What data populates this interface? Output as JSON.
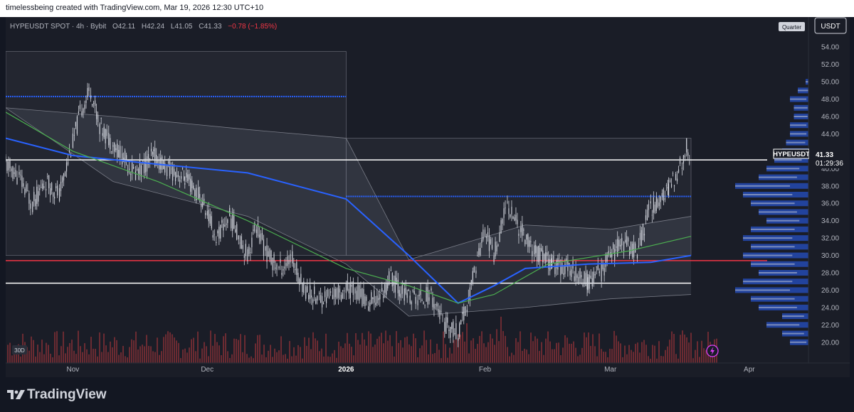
{
  "header": {
    "credit": "timelessbeing created with TradingView.com, Mar 19, 2026 12:30 UTC+10"
  },
  "symbol": {
    "title": "HYPEUSDT SPOT · 4h · Bybit",
    "open": "O42.11",
    "high": "H42.24",
    "low": "L41.05",
    "close": "C41.33",
    "change": "−0.78 (−1.85%)"
  },
  "toolbar": {
    "quarter_label": "Quarter",
    "currency_label": "USDT",
    "range_badge": "30D"
  },
  "price_label": {
    "symbol": "HYPEUSDT",
    "price": "41.33",
    "countdown": "01:29:36"
  },
  "footer": {
    "brand": "TradingView"
  },
  "colors": {
    "background": "#1a1d27",
    "candle": "#d1d4dc",
    "ma_blue": "#2962ff",
    "ma_green": "#4caf50",
    "support_red": "#f23645",
    "level_white": "#ffffff",
    "volume": "#7a2e35"
  },
  "chart_data": {
    "type": "candlestick",
    "x_labels": [
      "Nov",
      "Dec",
      "2026",
      "Feb",
      "Mar",
      "Apr"
    ],
    "y_ticks": [
      "20.00",
      "22.00",
      "24.00",
      "26.00",
      "28.00",
      "30.00",
      "32.00",
      "34.00",
      "36.00",
      "38.00",
      "40.00",
      "42.00",
      "44.00",
      "46.00",
      "48.00",
      "50.00",
      "52.00",
      "54.00"
    ],
    "ylim": [
      19,
      55
    ],
    "current_price": 41.33,
    "price_series": [
      [
        "2025-10-17",
        40.5
      ],
      [
        "2025-10-20",
        39
      ],
      [
        "2025-10-23",
        36
      ],
      [
        "2025-10-26",
        38.5
      ],
      [
        "2025-10-29",
        37
      ],
      [
        "2025-11-01",
        43
      ],
      [
        "2025-11-03",
        47
      ],
      [
        "2025-11-05",
        49
      ],
      [
        "2025-11-07",
        45
      ],
      [
        "2025-11-09",
        43.5
      ],
      [
        "2025-11-12",
        41.5
      ],
      [
        "2025-11-15",
        39.5
      ],
      [
        "2025-11-19",
        41.5
      ],
      [
        "2025-11-22",
        40
      ],
      [
        "2025-11-26",
        39
      ],
      [
        "2025-11-29",
        37
      ],
      [
        "2025-12-01",
        35
      ],
      [
        "2025-12-03",
        32
      ],
      [
        "2025-12-06",
        34.5
      ],
      [
        "2025-12-08",
        32.5
      ],
      [
        "2025-12-10",
        30
      ],
      [
        "2025-12-12",
        33.5
      ],
      [
        "2025-12-14",
        30.5
      ],
      [
        "2025-12-17",
        28.5
      ],
      [
        "2025-12-20",
        29.5
      ],
      [
        "2025-12-23",
        26
      ],
      [
        "2025-12-26",
        25
      ],
      [
        "2025-12-29",
        25.5
      ],
      [
        "2026-01-01",
        26
      ],
      [
        "2026-01-03",
        26.2
      ],
      [
        "2026-01-06",
        24.5
      ],
      [
        "2026-01-09",
        25.5
      ],
      [
        "2026-01-11",
        27.5
      ],
      [
        "2026-01-14",
        25.5
      ],
      [
        "2026-01-17",
        25
      ],
      [
        "2026-01-20",
        25.5
      ],
      [
        "2026-01-23",
        22
      ],
      [
        "2026-01-26",
        21
      ],
      [
        "2026-01-28",
        24
      ],
      [
        "2026-01-30",
        29
      ],
      [
        "2026-02-01",
        33
      ],
      [
        "2026-02-03",
        30
      ],
      [
        "2026-02-06",
        36
      ],
      [
        "2026-02-09",
        33
      ],
      [
        "2026-02-12",
        30.5
      ],
      [
        "2026-02-16",
        29
      ],
      [
        "2026-02-20",
        28.5
      ],
      [
        "2026-02-24",
        27
      ],
      [
        "2026-02-27",
        28
      ],
      [
        "2026-03-01",
        30
      ],
      [
        "2026-03-04",
        31.5
      ],
      [
        "2026-03-07",
        30.5
      ],
      [
        "2026-03-10",
        35.5
      ],
      [
        "2026-03-14",
        37.5
      ],
      [
        "2026-03-17",
        40.5
      ],
      [
        "2026-03-18",
        42.5
      ],
      [
        "2026-03-19",
        41.33
      ]
    ],
    "ma_blue": [
      [
        "2025-10-17",
        43.5
      ],
      [
        "2025-11-01",
        41.5
      ],
      [
        "2025-11-20",
        40.5
      ],
      [
        "2025-12-10",
        39.5
      ],
      [
        "2026-01-01",
        36.5
      ],
      [
        "2026-01-15",
        30
      ],
      [
        "2026-01-26",
        24.5
      ],
      [
        "2026-02-03",
        26.5
      ],
      [
        "2026-02-10",
        28.5
      ],
      [
        "2026-02-24",
        29
      ],
      [
        "2026-03-10",
        29.2
      ],
      [
        "2026-03-19",
        30
      ]
    ],
    "ma_green": [
      [
        "2025-10-17",
        46.5
      ],
      [
        "2025-11-01",
        42
      ],
      [
        "2025-11-20",
        38.5
      ],
      [
        "2025-12-10",
        34
      ],
      [
        "2026-01-01",
        28.5
      ],
      [
        "2026-01-15",
        26.5
      ],
      [
        "2026-01-26",
        24.5
      ],
      [
        "2026-02-03",
        25.5
      ],
      [
        "2026-02-15",
        29
      ],
      [
        "2026-03-05",
        30.5
      ],
      [
        "2026-03-19",
        32.2
      ]
    ],
    "band_upper": [
      [
        "2025-10-17",
        47
      ],
      [
        "2025-11-10",
        46
      ],
      [
        "2025-12-10",
        44.5
      ],
      [
        "2026-01-01",
        43.5
      ],
      [
        "2026-01-15",
        29.5
      ],
      [
        "2026-02-10",
        33.5
      ],
      [
        "2026-03-01",
        33
      ],
      [
        "2026-03-19",
        34.5
      ]
    ],
    "band_lower": [
      [
        "2025-10-17",
        47
      ],
      [
        "2025-11-10",
        38.5
      ],
      [
        "2025-12-10",
        34.5
      ],
      [
        "2026-01-01",
        29
      ],
      [
        "2026-01-15",
        23
      ],
      [
        "2026-02-10",
        24
      ],
      [
        "2026-03-01",
        25
      ],
      [
        "2026-03-19",
        25.5
      ]
    ],
    "horizontal_levels": [
      {
        "price": 48.3,
        "from": "2025-10-17",
        "to": "2026-01-01",
        "color": "#2962ff"
      },
      {
        "price": 36.8,
        "from": "2026-01-01",
        "to": "2026-03-19",
        "color": "#2962ff"
      },
      {
        "price": 41.0,
        "from": "2025-10-17",
        "to": "2026-04-05",
        "color": "#ffffff"
      },
      {
        "price": 29.4,
        "from": "2025-10-17",
        "to": "2026-04-05",
        "color": "#f23645"
      },
      {
        "price": 26.8,
        "from": "2025-10-17",
        "to": "2026-03-19",
        "color": "#ffffff"
      }
    ],
    "quarter_boxes": [
      {
        "from": "2025-10-17",
        "to": "2026-01-01",
        "low": 30,
        "high": 53.5
      },
      {
        "from": "2026-01-01",
        "to": "2026-03-19",
        "low": 30,
        "high": 43.5
      }
    ],
    "volume_profile": [
      [
        20,
        0.3
      ],
      [
        21,
        0.4
      ],
      [
        22,
        0.6
      ],
      [
        23,
        0.4
      ],
      [
        24,
        0.7
      ],
      [
        25,
        0.8
      ],
      [
        26,
        1.0
      ],
      [
        27,
        0.9
      ],
      [
        28,
        0.7
      ],
      [
        29,
        0.8
      ],
      [
        30,
        0.9
      ],
      [
        31,
        0.8
      ],
      [
        32,
        0.9
      ],
      [
        33,
        0.8
      ],
      [
        34,
        0.6
      ],
      [
        35,
        0.7
      ],
      [
        36,
        0.8
      ],
      [
        37,
        0.9
      ],
      [
        38,
        1.0
      ],
      [
        39,
        0.7
      ],
      [
        40,
        0.6
      ],
      [
        41,
        0.5
      ],
      [
        42,
        0.4
      ],
      [
        43,
        0.35
      ],
      [
        44,
        0.3
      ],
      [
        45,
        0.3
      ],
      [
        46,
        0.25
      ],
      [
        47,
        0.25
      ],
      [
        48,
        0.3
      ],
      [
        49,
        0.2
      ],
      [
        50,
        0.1
      ]
    ]
  }
}
